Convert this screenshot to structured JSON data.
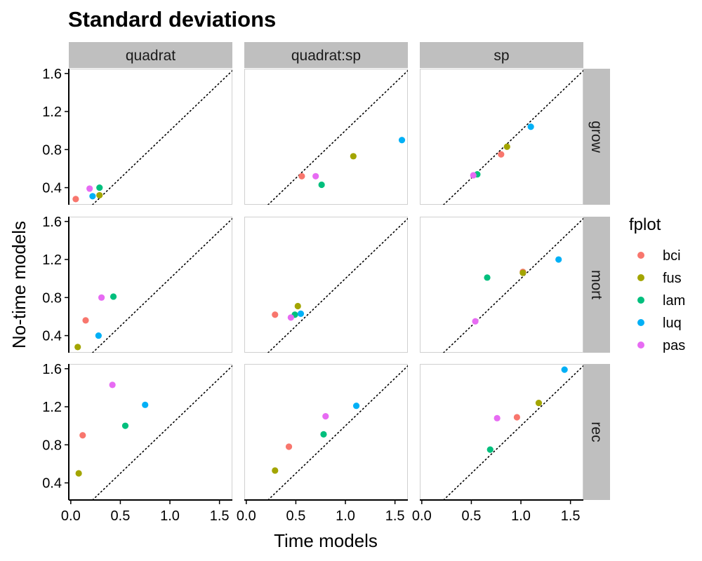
{
  "chart_data": {
    "type": "scatter",
    "title": "Standard deviations",
    "xlabel": "Time models",
    "ylabel": "No-time models",
    "xlim": [
      -0.02,
      1.63
    ],
    "ylim": [
      0.22,
      1.65
    ],
    "x_ticks": [
      "0.0",
      "0.5",
      "1.0",
      "1.5"
    ],
    "y_ticks": [
      "0.4",
      "0.8",
      "1.2",
      "1.6"
    ],
    "reference_line": "y = x (dotted)",
    "grid": false,
    "col_facets": [
      "quadrat",
      "quadrat:sp",
      "sp"
    ],
    "row_facets": [
      "grow",
      "mort",
      "rec"
    ],
    "legend": {
      "title": "fplot",
      "placement": "right",
      "entries": [
        {
          "name": "bci",
          "color": "#F8766D"
        },
        {
          "name": "fus",
          "color": "#A3A500"
        },
        {
          "name": "lam",
          "color": "#00BF7D"
        },
        {
          "name": "luq",
          "color": "#00B0F6"
        },
        {
          "name": "pas",
          "color": "#E76BF3"
        }
      ]
    },
    "panels": [
      {
        "col": "quadrat",
        "row": "grow",
        "points": [
          {
            "series": "bci",
            "x": 0.05,
            "y": 0.28
          },
          {
            "series": "fus",
            "x": 0.29,
            "y": 0.32
          },
          {
            "series": "lam",
            "x": 0.29,
            "y": 0.4
          },
          {
            "series": "luq",
            "x": 0.22,
            "y": 0.31
          },
          {
            "series": "pas",
            "x": 0.19,
            "y": 0.39
          }
        ]
      },
      {
        "col": "quadrat:sp",
        "row": "grow",
        "points": [
          {
            "series": "bci",
            "x": 0.56,
            "y": 0.52
          },
          {
            "series": "fus",
            "x": 1.08,
            "y": 0.73
          },
          {
            "series": "lam",
            "x": 0.76,
            "y": 0.43
          },
          {
            "series": "luq",
            "x": 1.57,
            "y": 0.9
          },
          {
            "series": "pas",
            "x": 0.7,
            "y": 0.52
          }
        ]
      },
      {
        "col": "sp",
        "row": "grow",
        "points": [
          {
            "series": "bci",
            "x": 0.8,
            "y": 0.75
          },
          {
            "series": "fus",
            "x": 0.86,
            "y": 0.83
          },
          {
            "series": "lam",
            "x": 0.56,
            "y": 0.54
          },
          {
            "series": "luq",
            "x": 1.1,
            "y": 1.04
          },
          {
            "series": "pas",
            "x": 0.52,
            "y": 0.53
          }
        ]
      },
      {
        "col": "quadrat",
        "row": "mort",
        "points": [
          {
            "series": "bci",
            "x": 0.15,
            "y": 0.56
          },
          {
            "series": "fus",
            "x": 0.07,
            "y": 0.28
          },
          {
            "series": "lam",
            "x": 0.43,
            "y": 0.81
          },
          {
            "series": "luq",
            "x": 0.28,
            "y": 0.4
          },
          {
            "series": "pas",
            "x": 0.31,
            "y": 0.8
          }
        ]
      },
      {
        "col": "quadrat:sp",
        "row": "mort",
        "points": [
          {
            "series": "bci",
            "x": 0.29,
            "y": 0.62
          },
          {
            "series": "fus",
            "x": 0.52,
            "y": 0.71
          },
          {
            "series": "lam",
            "x": 0.49,
            "y": 0.62
          },
          {
            "series": "luq",
            "x": 0.55,
            "y": 0.63
          },
          {
            "series": "pas",
            "x": 0.45,
            "y": 0.59
          }
        ]
      },
      {
        "col": "sp",
        "row": "mort",
        "points": [
          {
            "series": "bci",
            "x": 1.02,
            "y": 1.07
          },
          {
            "series": "fus",
            "x": 1.02,
            "y": 1.06
          },
          {
            "series": "lam",
            "x": 0.66,
            "y": 1.01
          },
          {
            "series": "luq",
            "x": 1.38,
            "y": 1.2
          },
          {
            "series": "pas",
            "x": 0.54,
            "y": 0.55
          }
        ]
      },
      {
        "col": "quadrat",
        "row": "rec",
        "points": [
          {
            "series": "bci",
            "x": 0.12,
            "y": 0.9
          },
          {
            "series": "fus",
            "x": 0.08,
            "y": 0.5
          },
          {
            "series": "lam",
            "x": 0.55,
            "y": 1.0
          },
          {
            "series": "luq",
            "x": 0.75,
            "y": 1.22
          },
          {
            "series": "pas",
            "x": 0.42,
            "y": 1.43
          }
        ]
      },
      {
        "col": "quadrat:sp",
        "row": "rec",
        "points": [
          {
            "series": "bci",
            "x": 0.43,
            "y": 0.78
          },
          {
            "series": "fus",
            "x": 0.29,
            "y": 0.53
          },
          {
            "series": "lam",
            "x": 0.78,
            "y": 0.91
          },
          {
            "series": "luq",
            "x": 1.11,
            "y": 1.21
          },
          {
            "series": "pas",
            "x": 0.8,
            "y": 1.1
          }
        ]
      },
      {
        "col": "sp",
        "row": "rec",
        "points": [
          {
            "series": "bci",
            "x": 0.96,
            "y": 1.09
          },
          {
            "series": "fus",
            "x": 1.18,
            "y": 1.24
          },
          {
            "series": "lam",
            "x": 0.69,
            "y": 0.75
          },
          {
            "series": "luq",
            "x": 1.44,
            "y": 1.59
          },
          {
            "series": "pas",
            "x": 0.76,
            "y": 1.08
          }
        ]
      }
    ]
  }
}
